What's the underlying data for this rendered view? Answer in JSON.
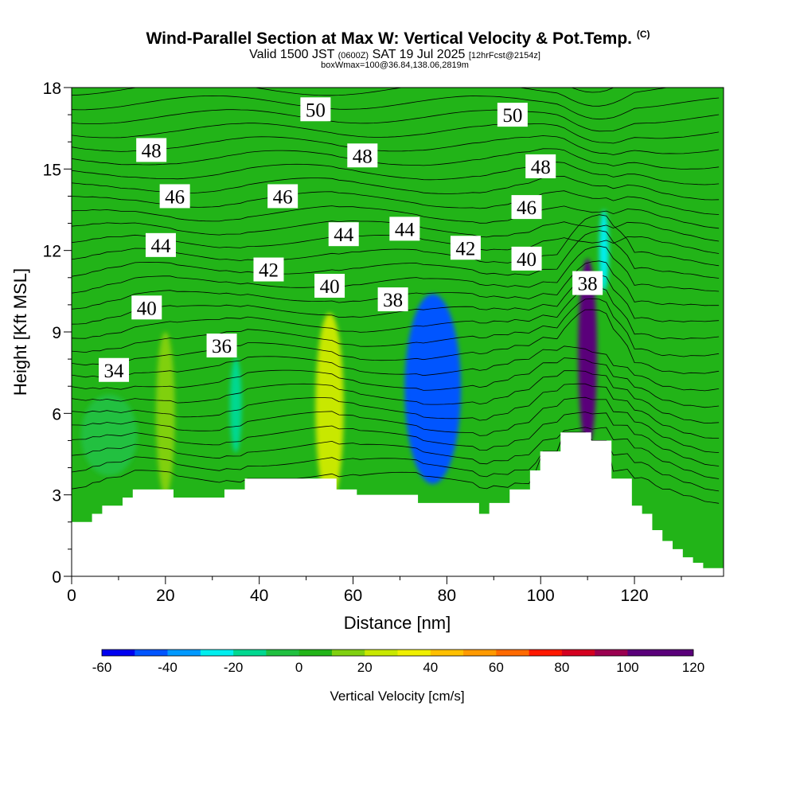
{
  "chart_data": {
    "type": "contour",
    "title": "Wind-Parallel Section at Max W: Vertical Velocity & Pot.Temp.",
    "copyright": "(C)",
    "subtitle_valid": "Valid 1500 JST",
    "subtitle_utc": "(0600Z)",
    "subtitle_date": "SAT 19 Jul 2025",
    "subtitle_fcst": "[12hrFcst@2154z]",
    "subtitle_box": "boxWmax=100@36.84,138.06,2819m",
    "xlabel": "Distance [nm]",
    "ylabel": "Height [Kft MSL]",
    "xlim": [
      0,
      139
    ],
    "ylim": [
      0,
      18
    ],
    "x_ticks": [
      "0",
      "20",
      "40",
      "60",
      "80",
      "100",
      "120"
    ],
    "y_ticks": [
      "0",
      "3",
      "6",
      "9",
      "12",
      "15",
      "18"
    ],
    "colorbar": {
      "label": "Vertical Velocity [cm/s]",
      "range": [
        -60,
        120
      ],
      "step": 10,
      "tick_labels": [
        "-60",
        "-40",
        "-20",
        "0",
        "20",
        "40",
        "60",
        "80",
        "100",
        "120"
      ],
      "colors": [
        "#0000f0",
        "#0055ff",
        "#0099ff",
        "#00eeee",
        "#00d890",
        "#20c040",
        "#22b418",
        "#80d010",
        "#c8e800",
        "#f0f000",
        "#ffc000",
        "#ff9a00",
        "#ff6a00",
        "#ff1800",
        "#d40020",
        "#9a0050",
        "#5a007a",
        "#5a007a"
      ]
    },
    "background_w_bin": "0 to 10 cm/s",
    "w_features": [
      {
        "x": 8,
        "y": 5.2,
        "w": 12,
        "h": 3,
        "bin": "-10 to 0"
      },
      {
        "x": 20,
        "y": 6.0,
        "w": 4,
        "h": 6,
        "bin": "10 to 20"
      },
      {
        "x": 35,
        "y": 6.3,
        "w": 2.5,
        "h": 3.5,
        "bin": "-20 to -10"
      },
      {
        "x": 55,
        "y": 6.2,
        "w": 6,
        "h": 7,
        "bin": "20 to 30"
      },
      {
        "x": 77,
        "y": 6.9,
        "w": 12,
        "h": 7,
        "bin": "-50 to -40"
      },
      {
        "x": 110,
        "y": 8.2,
        "w": 4,
        "h": 7,
        "bin": "100 to 110"
      },
      {
        "x": 113.5,
        "y": 12.0,
        "w": 2,
        "h": 3,
        "bin": "-30 to -20"
      }
    ],
    "theta_labels": [
      {
        "x": 9,
        "y": 7.6,
        "text": "34"
      },
      {
        "x": 32,
        "y": 8.5,
        "text": "36"
      },
      {
        "x": 68.5,
        "y": 10.2,
        "text": "38"
      },
      {
        "x": 110,
        "y": 10.8,
        "text": "38"
      },
      {
        "x": 16,
        "y": 9.9,
        "text": "40"
      },
      {
        "x": 55,
        "y": 10.7,
        "text": "40"
      },
      {
        "x": 97,
        "y": 11.7,
        "text": "40"
      },
      {
        "x": 42,
        "y": 11.3,
        "text": "42"
      },
      {
        "x": 84,
        "y": 12.1,
        "text": "42"
      },
      {
        "x": 19,
        "y": 12.2,
        "text": "44"
      },
      {
        "x": 58,
        "y": 12.6,
        "text": "44"
      },
      {
        "x": 71,
        "y": 12.8,
        "text": "44"
      },
      {
        "x": 22,
        "y": 14.0,
        "text": "46"
      },
      {
        "x": 45,
        "y": 14.0,
        "text": "46"
      },
      {
        "x": 97,
        "y": 13.6,
        "text": "46"
      },
      {
        "x": 17,
        "y": 15.7,
        "text": "48"
      },
      {
        "x": 62,
        "y": 15.5,
        "text": "48"
      },
      {
        "x": 100,
        "y": 15.1,
        "text": "48"
      },
      {
        "x": 52,
        "y": 17.2,
        "text": "50"
      },
      {
        "x": 94,
        "y": 17.0,
        "text": "50"
      }
    ],
    "terrain_height_kft": [
      2.0,
      2.0,
      2.3,
      2.6,
      2.6,
      2.9,
      3.2,
      3.2,
      3.2,
      3.2,
      2.9,
      2.9,
      2.9,
      2.9,
      2.9,
      3.2,
      3.2,
      3.6,
      3.6,
      3.6,
      3.6,
      3.6,
      3.6,
      3.6,
      3.6,
      3.6,
      3.2,
      3.2,
      3.0,
      3.0,
      3.0,
      3.0,
      3.0,
      3.0,
      2.7,
      2.7,
      2.7,
      2.7,
      2.7,
      2.7,
      2.3,
      2.7,
      2.7,
      3.2,
      3.2,
      3.9,
      4.6,
      4.6,
      5.3,
      5.3,
      5.3,
      5.0,
      5.0,
      3.6,
      3.6,
      2.6,
      2.3,
      1.7,
      1.3,
      1.0,
      0.7,
      0.5,
      0.3,
      0.3
    ],
    "grid_lines": false
  }
}
